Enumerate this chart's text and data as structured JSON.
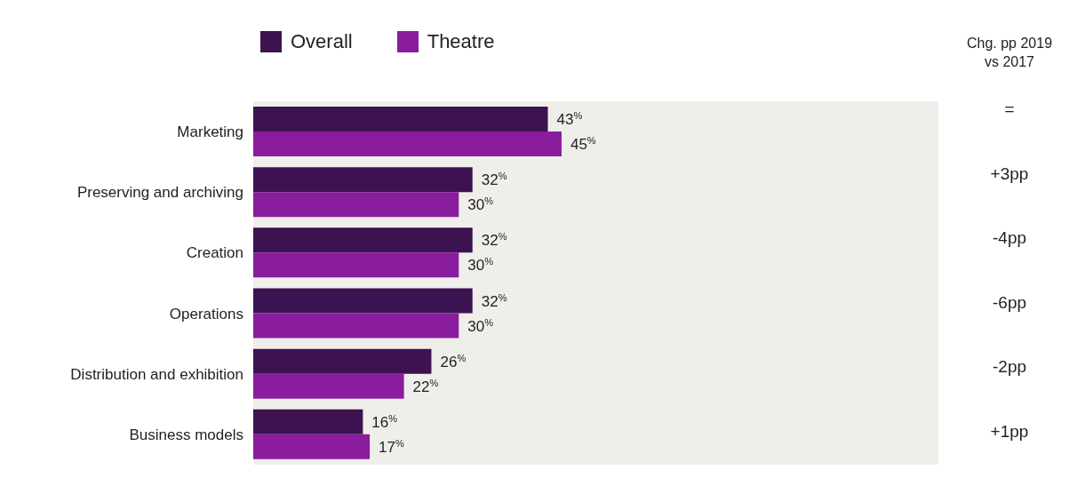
{
  "chart_data": {
    "type": "bar",
    "orientation": "horizontal",
    "categories": [
      "Marketing",
      "Preserving and archiving",
      "Creation",
      "Operations",
      "Distribution and exhibition",
      "Business models"
    ],
    "series": [
      {
        "name": "Overall",
        "color": "#3c1251",
        "values": [
          43,
          32,
          32,
          32,
          26,
          16
        ],
        "value_labels": [
          "43$^{%}$",
          "32$^{%}$",
          "32$^{%}$",
          "32$^{%}$",
          "26$^{%}$",
          "16$^{%}$"
        ]
      },
      {
        "name": "Theatre",
        "color": "#8a1c9e",
        "values": [
          45,
          30,
          30,
          30,
          22,
          17
        ],
        "value_labels": [
          "45$^{%}$",
          "30$^{%}$",
          "30$^{%}$",
          "30$^{%}$",
          "22$^{%}$",
          "17$^{%}$"
        ]
      }
    ],
    "xlim": [
      0,
      100
    ],
    "tick_labels": "y",
    "grid": false,
    "legend": "top left",
    "annotations": [
      "Chg. pp 2019 vs 2017",
      "=",
      "+3pp",
      "-4pp",
      "-6pp",
      "-2pp",
      "+1pp"
    ]
  }
}
